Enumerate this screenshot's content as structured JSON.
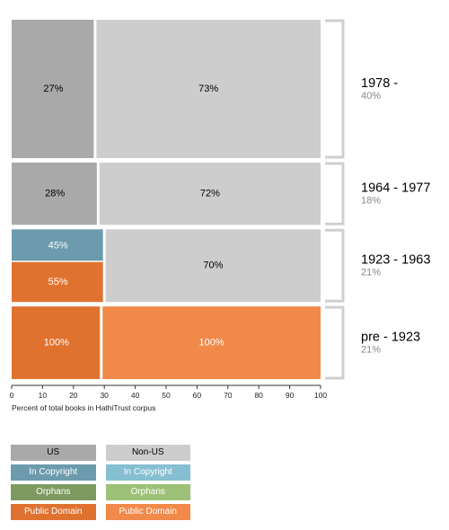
{
  "chart_data": {
    "type": "mosaic",
    "xlabel": "Percent of total books in HathiTrust corpus",
    "xlim": [
      0,
      100
    ],
    "xticks": [
      0,
      10,
      20,
      30,
      40,
      50,
      60,
      70,
      80,
      90,
      100
    ],
    "rows": [
      {
        "era": "1978 -",
        "share_label": "40%",
        "share": 40,
        "us_percent": 27,
        "segments": [
          {
            "group": "US",
            "status": "Unknown",
            "label": "27%",
            "value": 27,
            "color": "#a9a9a9",
            "text_color": "#000000"
          },
          {
            "group": "Non-US",
            "status": "Unknown",
            "label": "73%",
            "value": 73,
            "color": "#cdcdcd",
            "text_color": "#000000"
          }
        ]
      },
      {
        "era": "1964 - 1977",
        "share_label": "18%",
        "share": 18,
        "us_percent": 28,
        "segments": [
          {
            "group": "US",
            "status": "Unknown",
            "label": "28%",
            "value": 28,
            "color": "#a9a9a9",
            "text_color": "#000000"
          },
          {
            "group": "Non-US",
            "status": "Unknown",
            "label": "72%",
            "value": 72,
            "color": "#cdcdcd",
            "text_color": "#000000"
          }
        ]
      },
      {
        "era": "1923 - 1963",
        "share_label": "21%",
        "share": 21,
        "us_percent": 30,
        "segments": [
          {
            "group": "US",
            "status": "In Copyright",
            "label": "45%",
            "value": 45,
            "color": "#6b9bad",
            "text_color": "#ffffff"
          },
          {
            "group": "US",
            "status": "Public Domain",
            "label": "55%",
            "value": 55,
            "color": "#e07230",
            "text_color": "#ffffff"
          },
          {
            "group": "Non-US",
            "status": "Unknown",
            "label": "70%",
            "value": 70,
            "color": "#cdcdcd",
            "text_color": "#000000"
          }
        ]
      },
      {
        "era": "pre - 1923",
        "share_label": "21%",
        "share": 21,
        "us_percent": 29,
        "segments": [
          {
            "group": "US",
            "status": "Public Domain",
            "label": "100%",
            "value": 100,
            "color": "#e07230",
            "text_color": "#ffffff"
          },
          {
            "group": "Non-US",
            "status": "Public Domain",
            "label": "100%",
            "value": 100,
            "color": "#f0894a",
            "text_color": "#ffffff"
          }
        ]
      }
    ],
    "legend": [
      [
        {
          "label": "US",
          "color": "#a9a9a9",
          "text_color": "#000000"
        },
        {
          "label": "Non-US",
          "color": "#cdcdcd",
          "text_color": "#000000"
        }
      ],
      [
        {
          "label": "In Copyright",
          "color": "#6b9bad",
          "text_color": "#ffffff"
        },
        {
          "label": "In Copyright",
          "color": "#86bfd1",
          "text_color": "#ffffff"
        }
      ],
      [
        {
          "label": "Orphans",
          "color": "#7e9a60",
          "text_color": "#ffffff"
        },
        {
          "label": "Orphans",
          "color": "#9dc178",
          "text_color": "#ffffff"
        }
      ],
      [
        {
          "label": "Public Domain",
          "color": "#e07230",
          "text_color": "#ffffff"
        },
        {
          "label": "Public Domain",
          "color": "#f0894a",
          "text_color": "#ffffff"
        }
      ]
    ],
    "legend_placement": "bottom-left",
    "grid": false
  }
}
